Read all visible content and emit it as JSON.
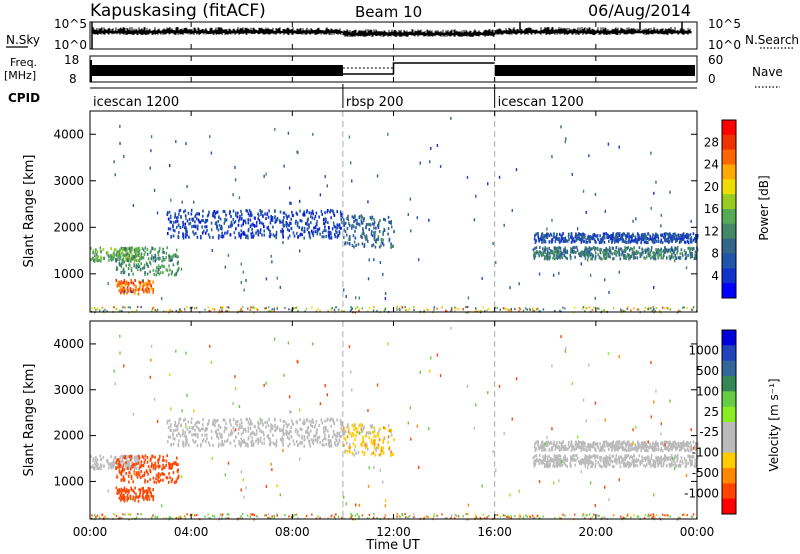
{
  "header": {
    "station": "Kapuskasing (fitACF)",
    "beam": "Beam 10",
    "date": "06/Aug/2014"
  },
  "noise_panel": {
    "left_label": "N.Sky",
    "left_ticks": [
      "10^5",
      "10^0"
    ],
    "right_label": "N.Search",
    "right_ticks": [
      "10^5",
      "10^0"
    ]
  },
  "freq_panel": {
    "left_label_1": "Freq.",
    "left_label_2": "[MHz]",
    "left_ticks": [
      "18",
      "8"
    ],
    "right_label": "Nave",
    "right_ticks": [
      "60",
      "0"
    ]
  },
  "cpid_panel": {
    "label": "CPID",
    "segments": [
      {
        "name": "icescan 1200",
        "start_hour": 0,
        "end_hour": 10
      },
      {
        "name": "rbsp 200",
        "start_hour": 10,
        "end_hour": 16
      },
      {
        "name": "icescan 1200",
        "start_hour": 16,
        "end_hour": 24
      }
    ]
  },
  "power_colorbar": {
    "label": "Power [dB]",
    "ticks": [
      "28",
      "24",
      "20",
      "16",
      "12",
      "8",
      "4"
    ],
    "colors": [
      "#ff0000",
      "#ee3300",
      "#ff6600",
      "#ffaa00",
      "#eedd00",
      "#99cc22",
      "#55aa55",
      "#448866",
      "#336688",
      "#2255aa",
      "#1133cc",
      "#0000ff"
    ]
  },
  "velocity_colorbar": {
    "label": "Velocity [m s⁻¹]",
    "ticks": [
      "1000",
      "500",
      "100",
      "25",
      "-25",
      "-100",
      "-500",
      "-1000"
    ],
    "colors": [
      "#0000dd",
      "#2244bb",
      "#336699",
      "#338855",
      "#66cc44",
      "#88ee22",
      "#bbbbbb",
      "#bbbbbb",
      "#ffcc00",
      "#ff8800",
      "#ff4400",
      "#ff0000"
    ]
  },
  "chart_data": {
    "type": "heatmap",
    "xlabel": "Time UT",
    "x_ticks": [
      "00:00",
      "04:00",
      "08:00",
      "12:00",
      "16:00",
      "20:00",
      "00:00"
    ],
    "xlim_hours": [
      0,
      24
    ],
    "ylabel": "Slant Range [km]",
    "y_ticks": [
      1000,
      2000,
      3000,
      4000
    ],
    "ylim_km": [
      180,
      4500
    ],
    "mode_change_hours": [
      10,
      16
    ],
    "scatter_regions": [
      {
        "start_hour": 0.0,
        "end_hour": 2.0,
        "range_min_km": 1300,
        "range_max_km": 1600,
        "power_db": 14,
        "velocity": 20
      },
      {
        "start_hour": 1.0,
        "end_hour": 3.5,
        "range_min_km": 1000,
        "range_max_km": 1600,
        "power_db": 12,
        "velocity": -150
      },
      {
        "start_hour": 1.0,
        "end_hour": 2.5,
        "range_min_km": 600,
        "range_max_km": 900,
        "power_db": 24,
        "velocity": -300
      },
      {
        "start_hour": 3.0,
        "end_hour": 10.0,
        "range_min_km": 1800,
        "range_max_km": 2400,
        "power_db": 5,
        "velocity": 10
      },
      {
        "start_hour": 10.0,
        "end_hour": 12.0,
        "range_min_km": 1600,
        "range_max_km": 2300,
        "power_db": 8,
        "velocity": -40
      },
      {
        "start_hour": 17.5,
        "end_hour": 24.0,
        "range_min_km": 1700,
        "range_max_km": 1900,
        "power_db": 6,
        "velocity": 10
      },
      {
        "start_hour": 17.5,
        "end_hour": 24.0,
        "range_min_km": 1350,
        "range_max_km": 1600,
        "power_db": 10,
        "velocity": 5
      }
    ]
  }
}
